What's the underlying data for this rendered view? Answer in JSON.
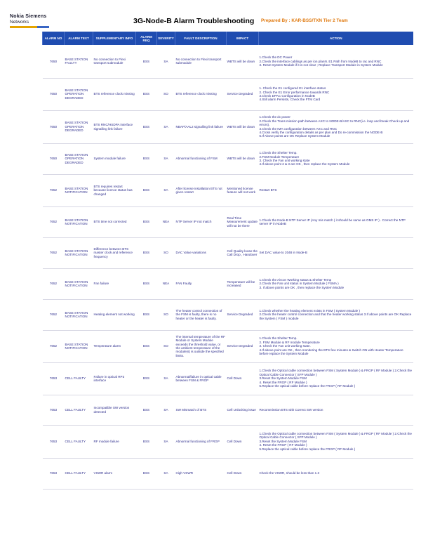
{
  "header": {
    "logo_line1": "Nokia Siemens",
    "logo_line2": "Networks",
    "title": "3G-Node-B Alarm Troubleshooting",
    "prepared_by": "Prepared By : KAR-BSS/TXN Tier 2 Team"
  },
  "columns": [
    "ALARM NO",
    "ALARM TEXT",
    "SUPPLEMENTARY INFO",
    "ALARM REQ",
    "SEVERITY",
    "FAULT DESCRIPTION",
    "IMPACT",
    "ACTION"
  ],
  "rows": [
    {
      "no": "7650",
      "text": "BASE STATION FAULTY",
      "info": "No connection to Flexi transport submodule",
      "req": "BSS",
      "sev": "SA",
      "desc": "No connection to Flexi transport submodule",
      "impact": "WBTS will be down",
      "action": "1.Check the DC Power\n2.Check the interface cablings as per ion planN. E1 Path from NodeB to rac and RNC\n3. Reset System Module if it is not clear ; Replace Transport Module in System Module"
    },
    {
      "no": "7650",
      "text": "BASE STATION OPERATION DEGRADED",
      "info": "BTS reference clock missing",
      "req": "BSS",
      "sev": "SO",
      "desc": "BTS reference clock missing",
      "impact": "Service Degraded",
      "action": "1. Check the E1 configured E1 interface status\n2. Check the E1 Error performance towards RNC\n3.Check DPAC Configuration in NodeB\n4.Still alarm Persists, Check the FTM Card"
    },
    {
      "no": "7650",
      "text": "BASE STATION OPERATION DEGRADED",
      "info": "BTS RNC/HSDPA interface signalling link failure",
      "req": "BSS",
      "sev": "SA",
      "desc": "NBAP/AAL2 signalling link failure",
      "impact": "WBTS will be down",
      "action": "1.Check the dc power\n2.Check the Trans mission path between AXC to NODE-B/AXC to RNC(i.e. loop and break Check up and errors).\n3.Check the IMA configuration between AXC and RNC\n4.Cross verify the configuration details as per plan and Do re-commission the NODE-B\n5.If Above points are OK Replace System Module"
    },
    {
      "no": "7650",
      "text": "BASE STATION OPERATION DEGRADED",
      "info": "System module failure",
      "req": "BSS",
      "sev": "SA",
      "desc": "Abnormal functioning of FSM",
      "impact": "WBTS will be down",
      "action": "1.Check the Shelter Temp.\n2.FSM Module Temperature\n3. Check the Fan unit working state\n4.If above point 2 & 3 are OK , then replace the System Module"
    },
    {
      "no": "7652",
      "text": "BASE STATION NOTIFICATION",
      "info": "BTS requires restart because licence status has changed",
      "req": "BSS",
      "sev": "SA",
      "desc": "After license installation BTS not given restart",
      "impact": "Mentioned license feature will not work",
      "action": "Restart BTS"
    },
    {
      "no": "7652",
      "text": "BASE STATION NOTIFICATION",
      "info": "BTS time not corrected",
      "req": "BSS",
      "sev": "NEA",
      "desc": "NTP Server IP not match",
      "impact": "Real Time Measurement update will not be there",
      "action": "1.Check the Node-B NTP Server IP (Any mis match ( it should be same as OMS IP ) . Correct the NTP server IP in NodeB"
    },
    {
      "no": "7652",
      "text": "BASE STATION NOTIFICATION",
      "info": "Difference between BTS master clock and reference frequency",
      "req": "BSS",
      "sev": "SO",
      "desc": "DAC Value variations",
      "impact": "Cell Quality loose the Call Drop , Handover",
      "action": "Set DAC value to 2048 in Node-B"
    },
    {
      "no": "7652",
      "text": "BASE STATION NOTIFICATION",
      "info": "Fan failure",
      "req": "BSS",
      "sev": "NEA",
      "desc": "FAN Faulty",
      "impact": "Temperature will be increased",
      "action": "1.Check the Aircon Working status & Shelter Temp\n2.Check the Fan unit status in System Module ( FSMA )\n3. If above points are OK , then replace the System Module"
    },
    {
      "no": "7652",
      "text": "BASE STATION NOTIFICATION",
      "info": "Heating element not working",
      "req": "BSS",
      "sev": "SO",
      "desc": "The heater control connection of the FSM is faulty, there is no heater or the heater is faulty.",
      "impact": "Service Degraded",
      "action": "1.Check whether the heating element exists in FSM ( System Module )\n2.Check the heater control connection and that the heater working status                                                                    3.If above points are OK Replace the System ( FSM ) module"
    },
    {
      "no": "7652",
      "text": "BASE STATION NOTIFICATION",
      "info": "Temperature alarm",
      "req": "BSS",
      "sev": "SO",
      "desc": "The internal temperature of the RF Module or System Module exceeds the threshold value, or the ambient temperature of the module(s) is outside the specified limits.",
      "impact": "Service Degraded",
      "action": "1.Check the Shelter Temp.\n2. FSM Module & RF module Temperature\n3. Check the Fan unit working state.\n4.If above point are OK , then monitoring the BTS few minutes & Switch ON with Heater Temperature before replace the System Module"
    },
    {
      "no": "7653",
      "text": "CELL FAULTY",
      "info": "Failure in optical RP3 interface",
      "req": "BSS",
      "sev": "SA",
      "desc": "Abnormal/failure in optical cable between FSM & FRGP",
      "impact": "Cell Down",
      "action": "1.Check the Optical cable connection between FSM ( System Module ) & FRGP ( RF Module )                              2.Check the Optical Cable Connector ( SFP Module )\n3.Reset the System Module FSM\n4. Reset the FRGP ( RF Module )\n5.Replace the optical cable before replace the FRGP ( RF Module )"
    },
    {
      "no": "7653",
      "text": "CELL FAULTY",
      "info": "Incompatible SW version detected",
      "req": "BSS",
      "sev": "SA",
      "desc": "SW Mismatch of BTS",
      "impact": "Cell Unlocking issue",
      "action": "Recommission BTS with Correct SW version"
    },
    {
      "no": "7653",
      "text": "CELL FAULTY",
      "info": "RF module failure",
      "req": "BSS",
      "sev": "SA",
      "desc": "Abnormal functioning of FRGP",
      "impact": "Cell Down",
      "action": "1.Check the Optical cable connection between FSM ( System Module ) & FRGP ( RF Module )                              2.Check the Optical Cable Connector ( SFP Module )\n3.Reset the System Module FSM\n4. Reset the FRGP ( RF Module )\n5.Replace the optical cable before replace the FRGP ( RF Module )"
    },
    {
      "no": "7653",
      "text": "CELL FAULTY",
      "info": "VSWR alarm",
      "req": "BSS",
      "sev": "SA",
      "desc": "High VSWR",
      "impact": "Cell Down",
      "action": "Check the VSWR, should be less than 1.3"
    }
  ]
}
